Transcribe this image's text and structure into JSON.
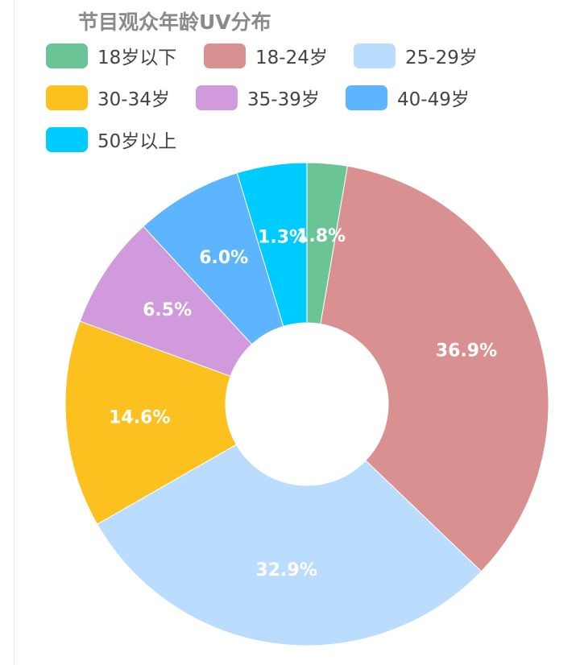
{
  "chart_data": {
    "type": "pie",
    "title": "节目观众年龄UV分布",
    "legend_position": "top-left",
    "categories": [
      "18岁以下",
      "18-24岁",
      "25-29岁",
      "30-34岁",
      "35-39岁",
      "40-49岁",
      "50岁以上"
    ],
    "values": [
      1.8,
      36.9,
      32.9,
      14.6,
      6.5,
      6.0,
      1.3
    ],
    "value_labels": [
      "1.8%",
      "36.9%",
      "32.9%",
      "14.6%",
      "6.5%",
      "6.0%",
      "1.3%"
    ],
    "colors": [
      "#6bc495",
      "#d89090",
      "#badcfe",
      "#fcc11f",
      "#d19add",
      "#5db4ff",
      "#00cbff"
    ],
    "unit": "%",
    "donut": true
  }
}
